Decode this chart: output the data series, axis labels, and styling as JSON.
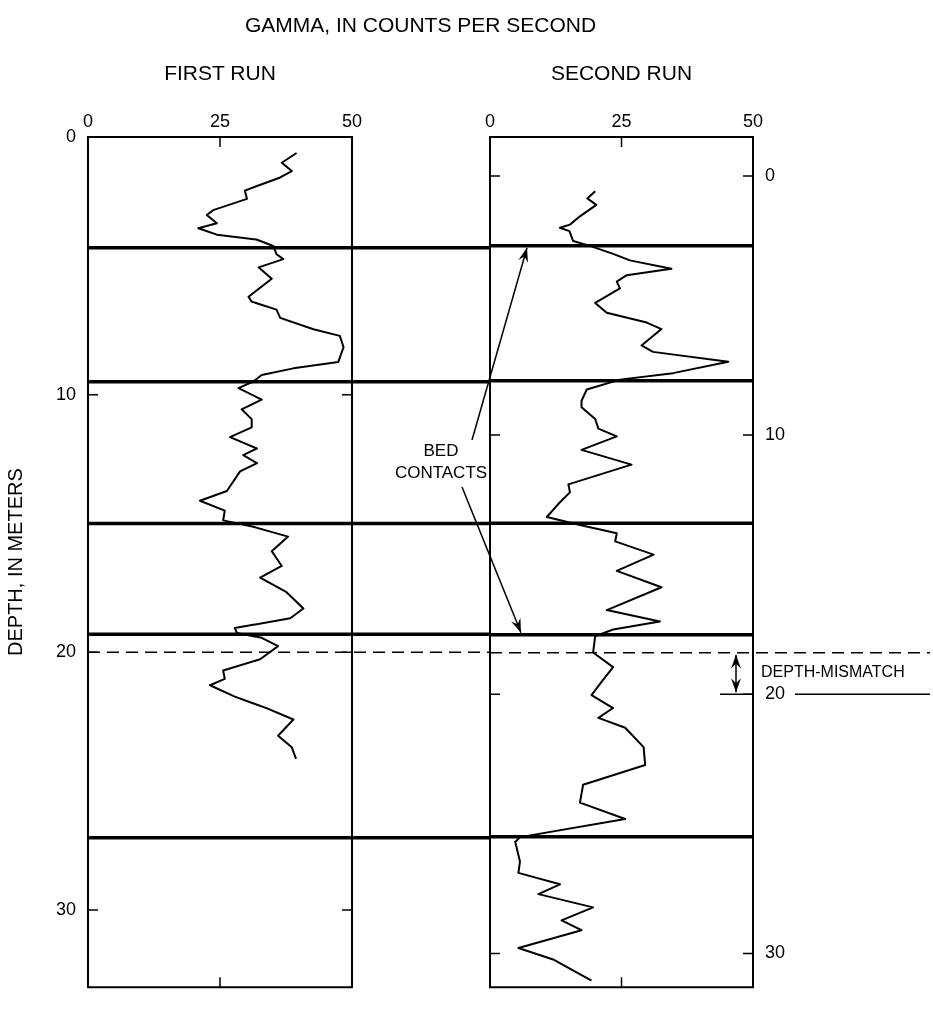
{
  "chart_data": [
    {
      "type": "line",
      "title": "FIRST RUN",
      "xlabel": "GAMMA, IN COUNTS PER SECOND",
      "ylabel": "DEPTH, IN METERS",
      "xlim": [
        0,
        50
      ],
      "xticks": [
        0,
        25,
        50
      ],
      "ylim": [
        33,
        0
      ],
      "yticks": [
        0,
        10,
        20,
        30
      ],
      "series": [
        {
          "color": "#000000",
          "x": [
            39.5,
            36.7,
            38.6,
            36.4,
            29.7,
            30.1,
            23.7,
            22.5,
            24.4,
            20.9,
            24.4,
            31.9,
            35.1,
            35.7,
            37.0,
            32.3,
            34.8,
            30.4,
            31.0,
            35.7,
            36.4,
            42.7,
            47.7,
            48.4,
            47.4,
            38.9,
            32.9,
            31.3,
            28.5,
            32.9,
            29.1,
            31.0,
            31.0,
            26.9,
            32.0,
            29.4,
            32.0,
            28.8,
            26.3,
            21.2,
            25.9,
            25.6,
            31.3,
            37.9,
            34.8,
            36.7,
            32.6,
            37.6,
            40.8,
            38.3,
            27.8,
            28.2,
            32.9,
            36.0,
            32.6,
            25.6,
            25.9,
            23.1,
            27.8,
            33.8,
            38.9,
            36.0,
            38.6,
            39.4
          ],
          "values": [
            0.62,
            1.0,
            1.32,
            1.57,
            2.08,
            2.4,
            2.84,
            3.03,
            3.35,
            3.54,
            3.79,
            3.98,
            4.23,
            4.55,
            4.74,
            5.06,
            5.5,
            6.2,
            6.39,
            6.7,
            7.02,
            7.46,
            7.72,
            8.16,
            8.73,
            8.98,
            9.24,
            9.49,
            9.75,
            10.19,
            10.57,
            10.95,
            11.27,
            11.65,
            12.09,
            12.35,
            12.66,
            12.98,
            13.74,
            14.12,
            14.5,
            14.88,
            15.13,
            15.51,
            16.08,
            16.65,
            17.1,
            17.67,
            18.3,
            18.68,
            19.06,
            19.25,
            19.44,
            19.76,
            20.27,
            20.71,
            21.03,
            21.28,
            21.72,
            22.17,
            22.61,
            23.24,
            23.69,
            24.14
          ]
        }
      ],
      "ref_lines": [
        {
          "axis": "y",
          "value": 4.3
        },
        {
          "axis": "y",
          "value": 9.5
        },
        {
          "axis": "y",
          "value": 15.0
        },
        {
          "axis": "y",
          "value": 19.3
        },
        {
          "axis": "y",
          "value": 27.2
        },
        {
          "axis": "y",
          "value": 20,
          "line_style": "dashed"
        }
      ]
    },
    {
      "type": "line",
      "title": "SECOND RUN",
      "xlim": [
        0,
        50
      ],
      "xticks": [
        0,
        25,
        50
      ],
      "ylim": [
        31.3,
        -1.5
      ],
      "yticks": [
        0,
        10,
        20,
        30
      ],
      "series": [
        {
          "color": "#000000",
          "x": [
            20.0,
            18.5,
            20.2,
            17.1,
            15.2,
            13.3,
            15.1,
            15.8,
            19.0,
            23.4,
            26.6,
            34.5,
            26.0,
            24.1,
            24.7,
            20.0,
            22.2,
            29.8,
            32.6,
            28.8,
            31.0,
            45.3,
            34.8,
            24.7,
            18.4,
            17.4,
            17.4,
            20.0,
            20.6,
            24.1,
            17.4,
            26.9,
            19.0,
            14.9,
            15.2,
            13.3,
            10.8,
            17.1,
            24.1,
            23.8,
            31.1,
            24.1,
            32.6,
            22.2,
            32.3,
            23.4,
            20.0,
            19.6,
            23.4,
            21.2,
            19.3,
            23.4,
            20.6,
            25.7,
            29.2,
            29.5,
            17.7,
            17.1,
            25.7,
            5.7,
            4.8,
            5.7,
            5.4,
            13.3,
            9.2,
            19.6,
            13.6,
            17.4,
            5.4,
            12.0,
            19.3
          ],
          "values": [
            0.59,
            0.87,
            1.12,
            1.56,
            1.88,
            2.0,
            2.13,
            2.51,
            2.7,
            3.01,
            3.26,
            3.58,
            3.83,
            4.08,
            4.34,
            4.9,
            5.28,
            5.66,
            5.91,
            6.54,
            6.79,
            7.17,
            7.61,
            7.86,
            8.24,
            8.68,
            8.93,
            9.38,
            9.75,
            10.05,
            10.57,
            11.14,
            11.64,
            11.9,
            12.21,
            12.59,
            13.16,
            13.47,
            13.79,
            14.1,
            14.61,
            15.24,
            15.87,
            16.75,
            17.19,
            17.5,
            17.76,
            18.39,
            18.95,
            19.52,
            20.03,
            20.53,
            20.91,
            21.29,
            22.04,
            22.73,
            23.49,
            24.18,
            24.81,
            25.51,
            25.7,
            26.45,
            26.89,
            27.33,
            27.71,
            28.22,
            28.72,
            29.1,
            29.79,
            30.23,
            31.05
          ]
        }
      ],
      "ref_lines": [
        {
          "axis": "y",
          "value": 2.7
        },
        {
          "axis": "y",
          "value": 7.9
        },
        {
          "axis": "y",
          "value": 13.4
        },
        {
          "axis": "y",
          "value": 17.7
        },
        {
          "axis": "y",
          "value": 25.5
        },
        {
          "axis": "y",
          "value": 18.4,
          "line_style": "dashed"
        },
        {
          "axis": "y",
          "value": 20,
          "label": "DEPTH-MISMATCH"
        }
      ],
      "annotations": [
        "BED CONTACTS"
      ]
    }
  ]
}
